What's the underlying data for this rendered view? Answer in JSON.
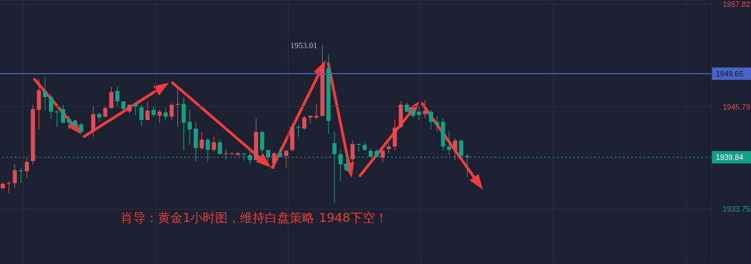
{
  "chart_data": {
    "type": "candlestick",
    "categories": [
      null,
      null,
      null,
      null,
      null,
      null,
      null,
      null,
      null,
      null,
      null,
      null,
      null,
      null,
      null,
      null,
      null,
      null,
      null,
      null,
      null,
      null,
      null,
      null,
      null,
      null,
      null,
      null,
      null,
      null,
      null,
      null,
      null,
      null,
      null,
      null,
      null,
      null,
      null,
      null,
      null,
      null,
      null,
      null,
      null,
      null,
      null,
      null,
      null,
      null,
      null,
      null,
      null,
      null,
      null,
      null,
      null,
      null,
      null,
      null,
      null,
      null,
      null,
      null,
      null,
      null,
      null,
      null,
      null,
      null,
      null,
      null,
      null,
      null,
      null,
      null,
      null,
      null,
      null,
      null,
      null,
      null,
      null,
      null,
      null,
      null,
      null,
      null,
      null,
      null,
      null,
      null,
      null,
      null,
      null,
      null,
      null,
      null,
      null,
      null,
      null,
      null,
      null,
      null,
      null,
      null,
      null,
      null,
      null,
      null,
      null,
      null,
      null,
      null,
      null,
      null,
      null,
      null
    ],
    "ohlc": [
      [
        1936.2,
        1936.9,
        1936.1,
        1936.7
      ],
      [
        1936.8,
        1937.0,
        1935.6,
        1936.8
      ],
      [
        1936.8,
        1939.0,
        1936.2,
        1938.3
      ],
      [
        1938.3,
        1938.6,
        1936.8,
        1938.2
      ],
      [
        1938.2,
        1939.8,
        1937.4,
        1939.3
      ],
      [
        1939.4,
        1946.0,
        1939.0,
        1945.5
      ],
      [
        1945.4,
        1949.0,
        1943.1,
        1947.7
      ],
      [
        1947.6,
        1949.3,
        1945.3,
        1946.9
      ],
      [
        1946.9,
        1947.2,
        1944.3,
        1945.2
      ],
      [
        1945.2,
        1945.4,
        1943.4,
        1945.1
      ],
      [
        1945.5,
        1946.0,
        1943.8,
        1943.9
      ],
      [
        1944.3,
        1944.7,
        1943.1,
        1943.9
      ],
      [
        1944.1,
        1944.2,
        1943.3,
        1943.5
      ],
      [
        1943.7,
        1943.9,
        1942.7,
        1942.8
      ],
      [
        1942.6,
        1942.7,
        1942.5,
        1942.6
      ],
      [
        1942.9,
        1945.8,
        1942.2,
        1944.9
      ],
      [
        1944.9,
        1945.1,
        1944.0,
        1944.5
      ],
      [
        1944.6,
        1945.8,
        1944.5,
        1945.6
      ],
      [
        1945.6,
        1948.1,
        1945.6,
        1947.5
      ],
      [
        1947.6,
        1948.1,
        1945.8,
        1946.4
      ],
      [
        1946.4,
        1946.4,
        1945.2,
        1945.5
      ],
      [
        1945.2,
        1946.0,
        1945.0,
        1946.0
      ],
      [
        1946.1,
        1946.1,
        1944.8,
        1945.8
      ],
      [
        1945.7,
        1946.0,
        1943.5,
        1944.2
      ],
      [
        1944.2,
        1946.4,
        1944.2,
        1945.3
      ],
      [
        1945.4,
        1945.8,
        1944.6,
        1944.8
      ],
      [
        1944.7,
        1945.4,
        1943.9,
        1945.2
      ],
      [
        1945.1,
        1945.6,
        1944.2,
        1944.6
      ],
      [
        1944.6,
        1946.2,
        1944.2,
        1946.0
      ],
      [
        1946.0,
        1948.1,
        1943.4,
        1946.1
      ],
      [
        1946.1,
        1946.8,
        1940.6,
        1943.9
      ],
      [
        1944.0,
        1945.4,
        1941.3,
        1943.1
      ],
      [
        1943.2,
        1944.0,
        1939.3,
        1940.9
      ],
      [
        1940.9,
        1942.8,
        1940.7,
        1941.9
      ],
      [
        1941.9,
        1942.1,
        1939.3,
        1940.7
      ],
      [
        1940.7,
        1942.3,
        1940.5,
        1941.6
      ],
      [
        1941.6,
        1941.9,
        1940.2,
        1940.2
      ],
      [
        1940.3,
        1940.8,
        1939.6,
        1940.3
      ],
      [
        1940.2,
        1940.4,
        1940.2,
        1940.3
      ],
      [
        1940.1,
        1940.5,
        1940.1,
        1940.3
      ],
      [
        1940.3,
        1940.3,
        1939.4,
        1940.2
      ],
      [
        1940.1,
        1940.5,
        1939.0,
        1939.5
      ],
      [
        1939.5,
        1944.4,
        1939.5,
        1942.8
      ],
      [
        1942.8,
        1942.9,
        1940.2,
        1940.7
      ],
      [
        1940.7,
        1940.7,
        1939.4,
        1939.8
      ],
      [
        1939.1,
        1940.4,
        1938.5,
        1940.3
      ],
      [
        1940.3,
        1940.9,
        1939.9,
        1939.9
      ],
      [
        1940.0,
        1940.7,
        1938.6,
        1940.6
      ],
      [
        1940.7,
        1943.8,
        1940.5,
        1943.4
      ],
      [
        1943.4,
        1943.7,
        1942.2,
        1943.3
      ],
      [
        1943.2,
        1944.7,
        1943.1,
        1944.5
      ],
      [
        1944.5,
        1944.7,
        1943.8,
        1944.7
      ],
      [
        1944.5,
        1946.1,
        1944.3,
        1944.7
      ],
      [
        1944.7,
        1953.01,
        1944.6,
        1950.1
      ],
      [
        1950.3,
        1951.9,
        1942.6,
        1944.1
      ],
      [
        1941.5,
        1942.9,
        1934.5,
        1940.2
      ],
      [
        1940.2,
        1940.7,
        1937.0,
        1939.0
      ],
      [
        1939.0,
        1940.1,
        1938.2,
        1938.3
      ],
      [
        1939.6,
        1941.8,
        1939.2,
        1941.4
      ],
      [
        1941.4,
        1941.4,
        1940.5,
        1941.3
      ],
      [
        1941.3,
        1941.5,
        1940.6,
        1940.7
      ],
      [
        1940.6,
        1940.9,
        1939.8,
        1939.9
      ],
      [
        1940.6,
        1940.8,
        1939.8,
        1939.9
      ],
      [
        1939.8,
        1941.2,
        1939.2,
        1940.6
      ],
      [
        1940.8,
        1941.5,
        1940.3,
        1941.1
      ],
      [
        1941.1,
        1944.3,
        1940.6,
        1943.3
      ],
      [
        1943.4,
        1946.4,
        1943.2,
        1946.0
      ],
      [
        1946.0,
        1946.3,
        1945.1,
        1945.2
      ],
      [
        1945.4,
        1945.6,
        1944.5,
        1944.7
      ],
      [
        1945.2,
        1945.8,
        1944.2,
        1944.8
      ],
      [
        1944.9,
        1946.5,
        1944.4,
        1945.3
      ],
      [
        1945.2,
        1945.4,
        1943.1,
        1944.0
      ],
      [
        1944.0,
        1944.7,
        1942.8,
        1943.6
      ],
      [
        1944.0,
        1944.4,
        1940.6,
        1941.1
      ],
      [
        1941.1,
        1942.9,
        1940.1,
        1940.7
      ],
      [
        1940.7,
        1942.1,
        1939.5,
        1941.8
      ],
      [
        1941.8,
        1941.9,
        1940.0,
        1940.0
      ],
      [
        1940.0,
        1940.2,
        1937.5,
        1939.84
      ],
      null,
      null,
      null,
      null,
      null,
      null,
      null,
      null,
      null,
      null,
      null,
      null,
      null,
      null,
      null,
      null,
      null,
      null,
      null,
      null,
      null,
      null,
      null,
      null,
      null,
      null,
      null,
      null,
      null,
      null,
      null,
      null,
      null,
      null,
      null,
      null,
      null,
      null,
      null,
      null
    ],
    "ylim": [
      1927.3,
      1958.3
    ],
    "yticks": [
      1957.82,
      1945.79,
      1933.75
    ],
    "grid": true,
    "ref_lines": [
      {
        "axis": "y",
        "value": 1949.65,
        "label": "1949.65",
        "color": "#4a63c9",
        "line_style": "solid"
      },
      {
        "axis": "y",
        "value": 1939.84,
        "label": "1939.84",
        "color": "#139f83",
        "line_style": "dashed"
      }
    ],
    "annotations": [
      "肖导：黄金1小时图，维持白盘策略 1948下空！",
      "1953.01"
    ]
  }
}
